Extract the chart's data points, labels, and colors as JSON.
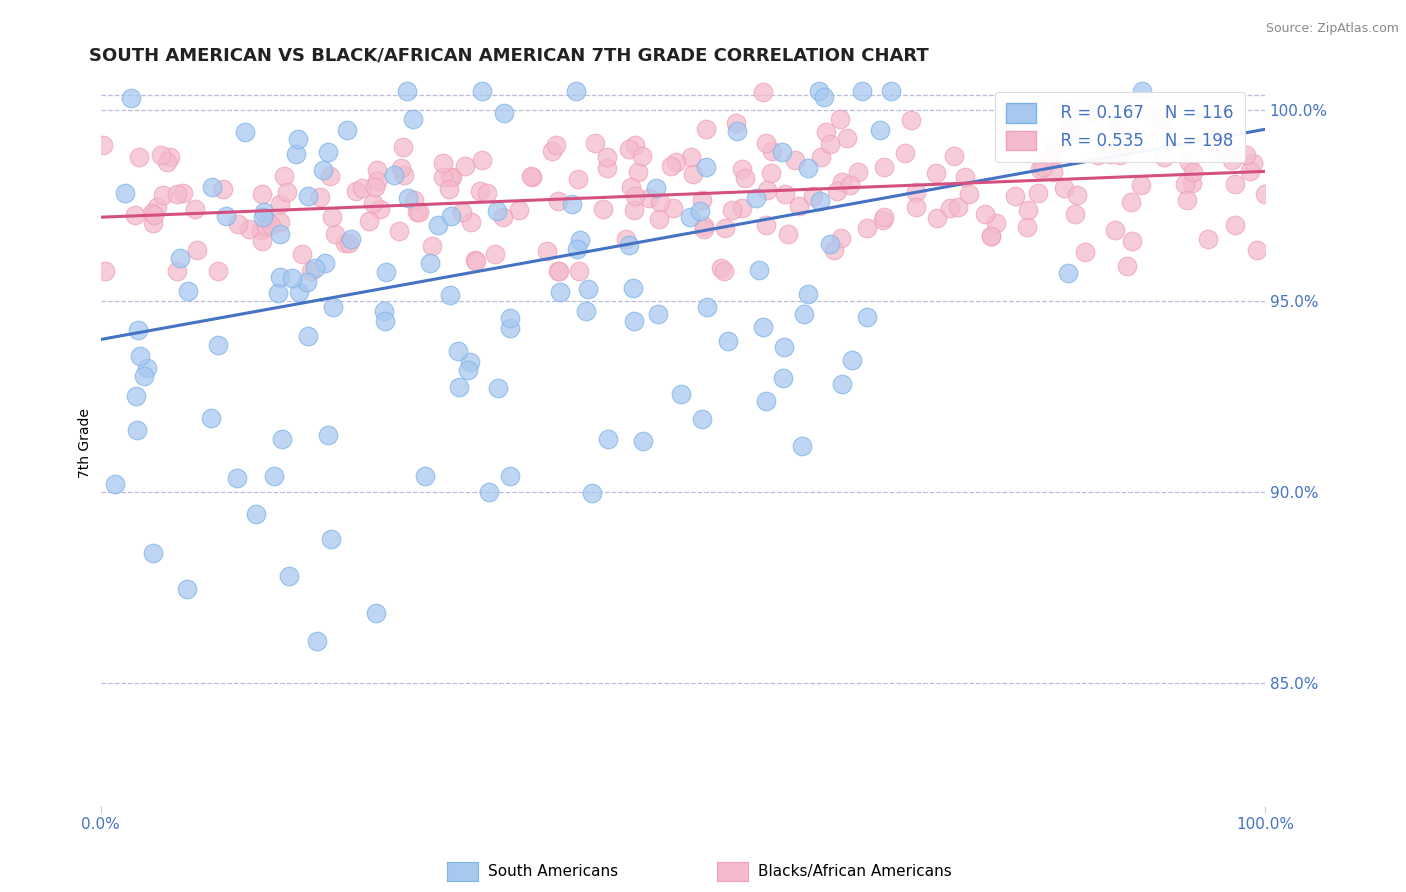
{
  "title": "SOUTH AMERICAN VS BLACK/AFRICAN AMERICAN 7TH GRADE CORRELATION CHART",
  "source": "Source: ZipAtlas.com",
  "ylabel": "7th Grade",
  "right_yticks": [
    85.0,
    90.0,
    95.0,
    100.0
  ],
  "xmin": 0.0,
  "xmax": 1.0,
  "ymin": 0.818,
  "ymax": 1.008,
  "legend_r1": "R = 0.167",
  "legend_n1": "N = 116",
  "legend_r2": "R = 0.535",
  "legend_n2": "N = 198",
  "color_blue": "#A8C8F0",
  "color_blue_edge": "#7EB3E8",
  "color_blue_line": "#4472C4",
  "color_pink": "#F4BBCC",
  "color_pink_edge": "#F0A0B8",
  "color_pink_line": "#D45080",
  "color_title": "#222222",
  "color_axis_label": "#4472C4",
  "color_source": "#888888",
  "color_grid": "#BBBBDD",
  "title_fontsize": 13,
  "axis_label_fontsize": 10,
  "tick_fontsize": 11,
  "legend_fontsize": 12,
  "blue_intercept": 0.94,
  "blue_slope": 0.055,
  "pink_intercept": 0.972,
  "pink_slope": 0.012
}
